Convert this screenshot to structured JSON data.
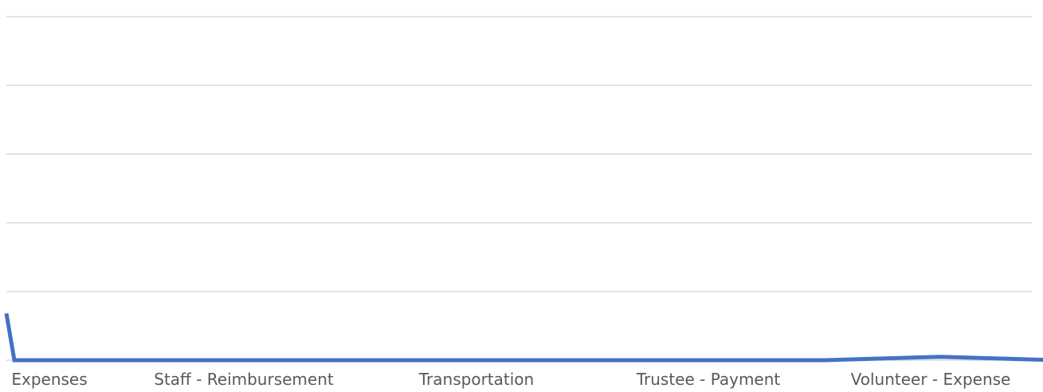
{
  "chart_data": {
    "type": "line",
    "x_tick_labels": [
      "Expenses",
      "Staff - Reimbursement",
      "Transportation",
      "Trustee - Payment",
      "Volunteer - Expense"
    ],
    "series": [
      {
        "color": "#4472c4",
        "values": [
          6.8,
          0,
          0,
          0,
          0,
          0,
          0,
          0,
          0,
          0.5,
          0,
          0
        ]
      }
    ],
    "ylim": [
      0,
      50
    ],
    "y_gridlines": [
      0,
      10,
      20,
      30,
      40,
      50
    ],
    "grid": true,
    "legend": "none",
    "gridline_color": "#d9d9d9",
    "tick_label_color": "#595959"
  }
}
